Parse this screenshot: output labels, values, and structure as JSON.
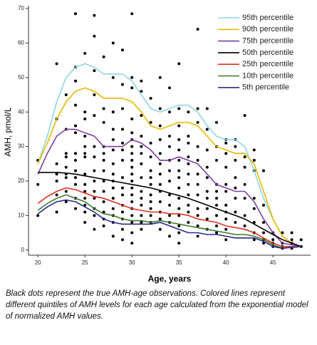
{
  "chart_data": {
    "type": "line",
    "ylabel": "AMH, pmol/L",
    "xlabel": "Age, years",
    "xlim": [
      19,
      49
    ],
    "ylim": [
      -1.5,
      70
    ],
    "xticks": [
      20,
      25,
      30,
      35,
      40,
      45
    ],
    "yticks": [
      0,
      10,
      20,
      30,
      40,
      50,
      60,
      70
    ],
    "x": [
      20,
      21,
      22,
      23,
      24,
      25,
      26,
      27,
      28,
      29,
      30,
      31,
      32,
      33,
      34,
      35,
      36,
      37,
      38,
      39,
      40,
      41,
      42,
      43,
      44,
      45,
      46,
      47,
      48
    ],
    "series": [
      {
        "name": "95th percentile",
        "color": "#8fd4e8",
        "values": [
          25,
          33,
          43,
          50,
          53,
          54,
          53,
          51,
          51,
          51,
          49,
          45,
          41,
          40,
          41,
          42,
          42,
          40,
          36,
          33,
          32,
          32,
          30,
          23,
          15,
          9,
          4,
          2,
          1
        ]
      },
      {
        "name": "90th percentile",
        "color": "#e6b800",
        "values": [
          25,
          31,
          38,
          43,
          46,
          47,
          46,
          44,
          44,
          44,
          43,
          40,
          36,
          35,
          36,
          37,
          37,
          36,
          33,
          30,
          29,
          28,
          28,
          25,
          17,
          9,
          4,
          2,
          1
        ]
      },
      {
        "name": "75th percentile",
        "color": "#7b3f9e",
        "values": [
          22,
          28,
          33,
          35,
          35,
          34,
          33,
          30,
          30,
          30,
          32,
          31,
          29,
          26,
          26,
          27,
          26,
          25,
          22,
          19,
          18,
          17,
          17,
          14,
          9,
          5,
          2,
          1.5,
          1
        ]
      },
      {
        "name": "50th percentile",
        "color": "#000000",
        "values": [
          22.5,
          22.5,
          22.5,
          22.3,
          22,
          21.5,
          21,
          20.5,
          20,
          19.5,
          19,
          18.5,
          18,
          17.3,
          16.5,
          15.8,
          15,
          14,
          13,
          12,
          11,
          10,
          9,
          7.5,
          6,
          4.5,
          3,
          2,
          1
        ]
      },
      {
        "name": "25th percentile",
        "color": "#e03020",
        "values": [
          13.5,
          15.5,
          17,
          18,
          17.5,
          16.5,
          15.5,
          15,
          14,
          13,
          12,
          11.5,
          11,
          11,
          10.5,
          10.5,
          10,
          9,
          8.5,
          8,
          7,
          6.5,
          6,
          5,
          3.5,
          2,
          1,
          1,
          1
        ]
      },
      {
        "name": "10th percentile",
        "color": "#3a7a2a",
        "values": [
          11.5,
          13.5,
          15,
          16,
          15,
          14,
          12,
          10.5,
          10,
          9,
          8.5,
          8.5,
          8,
          8.5,
          8,
          7.5,
          7,
          6.5,
          6,
          5.5,
          5,
          4.5,
          4.5,
          4,
          3,
          1.5,
          0.5,
          0.8,
          1
        ]
      },
      {
        "name": "5th percentile",
        "color": "#2a2a8c",
        "values": [
          10.5,
          12.5,
          14,
          14.5,
          14,
          12.5,
          11,
          9,
          8,
          7.5,
          7.5,
          7.5,
          7.5,
          8,
          7,
          6,
          5,
          5,
          4.5,
          4.5,
          4,
          3.5,
          3.5,
          3.5,
          2.5,
          1,
          0.5,
          0.8,
          1
        ]
      }
    ],
    "observations": {
      "color": "#000000",
      "x": [
        20,
        20,
        20,
        22,
        22,
        22,
        22,
        22,
        22,
        22,
        23,
        23,
        23,
        23,
        23,
        23,
        23,
        23,
        23,
        24,
        24,
        24,
        24,
        24,
        24,
        24,
        24,
        24,
        24,
        24,
        24,
        24,
        25,
        25,
        25,
        25,
        25,
        25,
        25,
        25,
        25,
        25,
        25,
        25,
        25,
        25,
        26,
        26,
        26,
        26,
        26,
        26,
        26,
        26,
        26,
        26,
        26,
        26,
        26,
        26,
        27,
        27,
        27,
        27,
        27,
        27,
        27,
        27,
        27,
        27,
        27,
        27,
        27,
        28,
        28,
        28,
        28,
        28,
        28,
        28,
        28,
        28,
        28,
        28,
        28,
        28,
        28,
        28,
        29,
        29,
        29,
        29,
        29,
        29,
        29,
        29,
        29,
        29,
        29,
        29,
        29,
        29,
        29,
        30,
        30,
        30,
        30,
        30,
        30,
        30,
        30,
        30,
        30,
        30,
        30,
        30,
        30,
        30,
        30,
        30,
        30,
        30,
        30,
        31,
        31,
        31,
        31,
        31,
        31,
        31,
        31,
        31,
        31,
        31,
        31,
        31,
        31,
        32,
        32,
        32,
        32,
        32,
        32,
        32,
        32,
        32,
        32,
        32,
        32,
        33,
        33,
        33,
        33,
        33,
        33,
        33,
        33,
        33,
        33,
        33,
        33,
        33,
        34,
        34,
        34,
        34,
        34,
        34,
        34,
        34,
        34,
        34,
        34,
        34,
        35,
        35,
        35,
        35,
        35,
        35,
        35,
        35,
        35,
        35,
        35,
        35,
        35,
        35,
        35,
        36,
        36,
        36,
        36,
        36,
        36,
        36,
        36,
        36,
        36,
        36,
        37,
        37,
        37,
        37,
        37,
        37,
        37,
        37,
        37,
        37,
        37,
        37,
        38,
        38,
        38,
        38,
        38,
        38,
        38,
        38,
        38,
        38,
        39,
        39,
        39,
        39,
        39,
        39,
        39,
        39,
        39,
        39,
        40,
        40,
        40,
        40,
        40,
        40,
        40,
        40,
        40,
        40,
        40,
        41,
        41,
        41,
        41,
        41,
        41,
        41,
        41,
        42,
        42,
        42,
        42,
        42,
        42,
        42,
        43,
        43,
        43,
        43,
        43,
        43,
        43,
        43,
        44,
        44,
        44,
        44,
        44,
        44,
        45,
        45,
        45,
        45,
        46,
        46,
        46,
        46,
        47,
        47,
        47,
        47,
        48,
        48
      ],
      "y": [
        26,
        19,
        10,
        54,
        38,
        25,
        22,
        20,
        16,
        11,
        45,
        35,
        28,
        27,
        24,
        22,
        21,
        17,
        14,
        68.5,
        53,
        49,
        42,
        36,
        34,
        28,
        26,
        23,
        21,
        19,
        15,
        12,
        57,
        40,
        38,
        33,
        30,
        28,
        27,
        22,
        19,
        17,
        15,
        13,
        11,
        8,
        68,
        62,
        52,
        45,
        39,
        30,
        27,
        23,
        20,
        17,
        15,
        12,
        10,
        6,
        56,
        41,
        37,
        30,
        28,
        26,
        23,
        20,
        17,
        14,
        11,
        9,
        7,
        60,
        50,
        40,
        35,
        32,
        29,
        25,
        22,
        20,
        18,
        15,
        12,
        10,
        8,
        4,
        58,
        48,
        41,
        35,
        31,
        29,
        26,
        21,
        18,
        16,
        13,
        11,
        9,
        6,
        3,
        68.5,
        50,
        47,
        38,
        34,
        32,
        30,
        28,
        26,
        24,
        22,
        20,
        18,
        16,
        14,
        12,
        10,
        8,
        5,
        2,
        49,
        46,
        39,
        33,
        30,
        28,
        25,
        21,
        17,
        15,
        13,
        10,
        8,
        6,
        44,
        37,
        31,
        27,
        23,
        21,
        19,
        16,
        14,
        12,
        10,
        8,
        50,
        41,
        36,
        32,
        28,
        25,
        22,
        19,
        17,
        14,
        11,
        9,
        6,
        47,
        40,
        33,
        30,
        26,
        23,
        20,
        16,
        13,
        10,
        8,
        4,
        54,
        41,
        36,
        32,
        29,
        26,
        23,
        21,
        18,
        15,
        12,
        10,
        7,
        5,
        2,
        40,
        33,
        31,
        27,
        25,
        22,
        19,
        16,
        13,
        11,
        8,
        64,
        41,
        37,
        30,
        26,
        22,
        19,
        16,
        12,
        10,
        7,
        4,
        41,
        35,
        29,
        24,
        21,
        17,
        15,
        12,
        9,
        6,
        37,
        30,
        26,
        19,
        17,
        15,
        13,
        10,
        7,
        5,
        32,
        31,
        28,
        24,
        19,
        17,
        13,
        11,
        9,
        6,
        3,
        32,
        30,
        26,
        21,
        18,
        15,
        11,
        8,
        39,
        27,
        24,
        19,
        15,
        10,
        7,
        29,
        26,
        23,
        15,
        12,
        8,
        5,
        3,
        23,
        13,
        8,
        5,
        3,
        2,
        5,
        3,
        2,
        1,
        5,
        2,
        1,
        0.5,
        5,
        3,
        2,
        0.5,
        3,
        1
      ]
    },
    "legend": "top-right",
    "caption": "Black dots represent the true AMH-age observations. Colored lines represent different quintiles of AMH levels for each age calculated from the exponential model of normalized AMH values."
  }
}
